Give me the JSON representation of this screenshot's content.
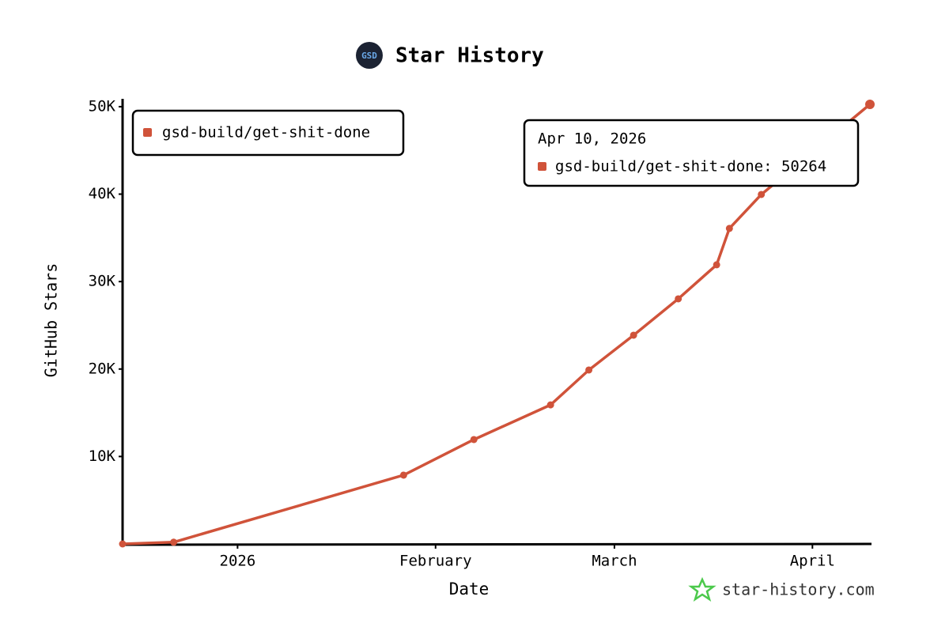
{
  "chart_data": {
    "type": "line",
    "title": "Star History",
    "logo": "GSD",
    "x_label": "Date",
    "y_label": "GitHub Stars",
    "watermark": "star-history.com",
    "x": [
      "2025-12-14",
      "2025-12-22",
      "2026-01-27",
      "2026-02-07",
      "2026-02-19",
      "2026-02-25",
      "2026-03-04",
      "2026-03-11",
      "2026-03-17",
      "2026-03-19",
      "2026-03-24",
      "2026-04-10"
    ],
    "series": [
      {
        "name": "gsd-build/get-shit-done",
        "color": "#d0533a",
        "values": [
          0,
          200,
          7870,
          11935,
          15900,
          19890,
          23870,
          28030,
          31920,
          36080,
          39960,
          50264
        ]
      }
    ],
    "xlim": [
      "2025-12-14",
      "2026-04-10"
    ],
    "xticks": [
      {
        "value": "2026-01-01",
        "label": "2026"
      },
      {
        "value": "2026-02-01",
        "label": "February"
      },
      {
        "value": "2026-03-01",
        "label": "March"
      },
      {
        "value": "2026-04-01",
        "label": "April"
      }
    ],
    "ylim": [
      0,
      50264
    ],
    "yticks": [
      {
        "value": 10000,
        "label": "10K"
      },
      {
        "value": 20000,
        "label": "20K"
      },
      {
        "value": 30000,
        "label": "30K"
      },
      {
        "value": 40000,
        "label": "40K"
      },
      {
        "value": 50000,
        "label": "50K"
      }
    ],
    "grid": false,
    "legend": "top-left",
    "tooltip": {
      "date": "Apr 10, 2026",
      "text": "gsd-build/get-shit-done: 50264"
    }
  }
}
